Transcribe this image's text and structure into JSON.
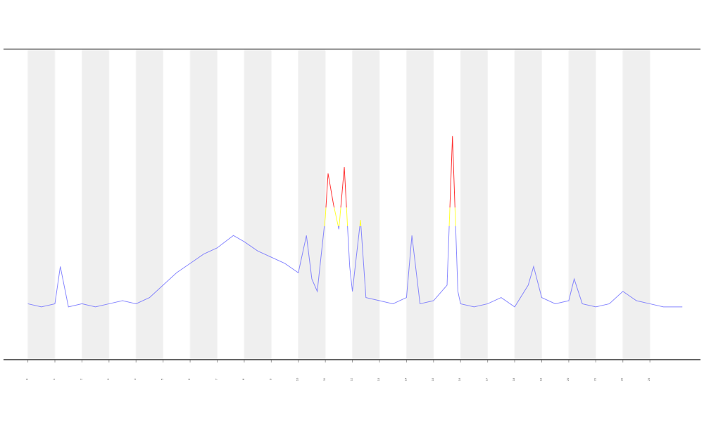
{
  "chart_data": {
    "type": "line",
    "x": [
      0,
      0.5,
      1,
      1.2,
      1.5,
      2,
      2.5,
      3,
      3.5,
      4,
      4.5,
      5,
      5.5,
      6,
      6.5,
      7,
      7.3,
      7.6,
      8,
      8.5,
      9,
      9.5,
      10,
      10.3,
      10.5,
      10.7,
      11,
      11.1,
      11.3,
      11.5,
      11.7,
      11.9,
      12,
      12.3,
      12.5,
      13,
      13.5,
      14,
      14.2,
      14.5,
      15,
      15.5,
      15.7,
      15.9,
      16,
      16.5,
      17,
      17.5,
      18,
      18.5,
      18.7,
      19,
      19.5,
      20,
      20.2,
      20.5,
      21,
      21.5,
      22,
      22.5,
      23,
      23.5,
      24,
      24.2
    ],
    "series": [
      {
        "color": "#6b6bff",
        "values": [
          18,
          17,
          18,
          30,
          17,
          18,
          17,
          18,
          19,
          18,
          20,
          24,
          28,
          31,
          34,
          36,
          38,
          40,
          38,
          35,
          33,
          31,
          28,
          40,
          26,
          22,
          46,
          60,
          50,
          42,
          62,
          30,
          22,
          45,
          20,
          19,
          18,
          20,
          40,
          18,
          19,
          24,
          72,
          22,
          18,
          17,
          18,
          20,
          17,
          24,
          30,
          20,
          18,
          19,
          26,
          18,
          17,
          18,
          22,
          19,
          18,
          17,
          17,
          17
        ]
      }
    ],
    "color_bands": [
      {
        "min": 0,
        "max": 43,
        "color": "#6b6bff"
      },
      {
        "min": 43,
        "max": 49,
        "color": "#ffff00"
      },
      {
        "min": 49,
        "max": 100,
        "color": "#ff0000"
      }
    ],
    "xlim": [
      -0.9,
      24.87
    ],
    "ylim": [
      0,
      100
    ],
    "xticks": [
      0,
      1,
      2,
      3,
      4,
      5,
      6,
      7,
      8,
      9,
      10,
      11,
      12,
      13,
      14,
      15,
      16,
      17,
      18,
      19,
      20,
      21,
      22,
      23
    ],
    "shade_alternate_days": true
  }
}
